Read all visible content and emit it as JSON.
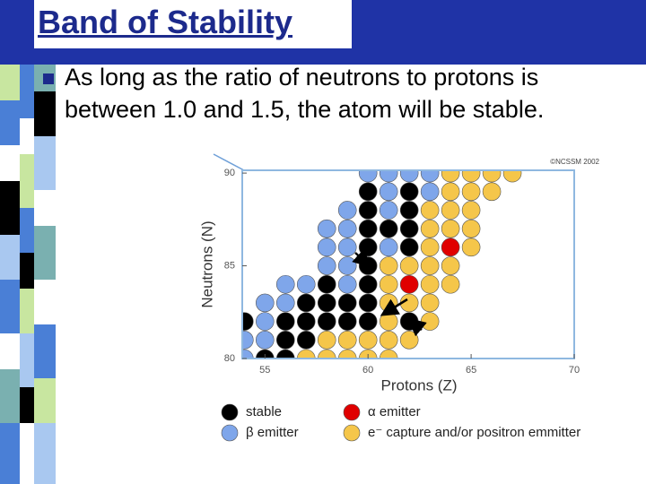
{
  "title": "Band of Stability",
  "bullet": "As long as the ratio of neutrons to protons is between 1.0 and 1.5, the atom will be stable.",
  "chart_data": {
    "type": "scatter",
    "credit": "©NCSSM 2002",
    "x_label": "Protons (Z)",
    "y_label": "Neutrons (N)",
    "xlim": [
      53.9,
      70
    ],
    "ylim": [
      80,
      90.15
    ],
    "xticks": [
      55,
      60,
      65,
      70
    ],
    "yticks": [
      80,
      85,
      90
    ],
    "series": [
      {
        "name": "stable",
        "color": "#000000",
        "x": [
          60,
          62,
          60,
          62,
          60,
          61,
          62,
          60,
          62,
          60,
          58,
          60,
          57,
          58,
          59,
          60,
          54,
          56,
          57,
          58,
          59,
          60,
          62,
          56,
          57,
          55,
          56
        ],
        "y": [
          89,
          89,
          88,
          88,
          87,
          87,
          87,
          86,
          86,
          85,
          84,
          84,
          83,
          83,
          83,
          83,
          82,
          82,
          82,
          82,
          82,
          82,
          82,
          81,
          81,
          80,
          80
        ]
      },
      {
        "name": "β emitter",
        "color": "#7fa6ea",
        "x": [
          60,
          61,
          62,
          63,
          61,
          63,
          59,
          61,
          58,
          59,
          58,
          59,
          61,
          58,
          59,
          56,
          57,
          59,
          55,
          56,
          55,
          54,
          55,
          54
        ],
        "y": [
          90,
          90,
          90,
          90,
          89,
          89,
          88,
          88,
          87,
          87,
          86,
          86,
          86,
          85,
          85,
          84,
          84,
          84,
          83,
          83,
          82,
          81,
          81,
          80
        ]
      },
      {
        "name": "α emitter",
        "color": "#e00000",
        "x": [
          64,
          62
        ],
        "y": [
          86,
          84
        ]
      },
      {
        "name": "e⁻ capture and/or positron emmitter",
        "color": "#f5c64a",
        "x": [
          64,
          65,
          66,
          67,
          64,
          65,
          66,
          63,
          64,
          65,
          63,
          64,
          65,
          63,
          65,
          61,
          62,
          63,
          64,
          61,
          63,
          64,
          61,
          62,
          63,
          61,
          63,
          58,
          59,
          60,
          61,
          62,
          57,
          58,
          59,
          60,
          61
        ],
        "y": [
          90,
          90,
          90,
          90,
          89,
          89,
          89,
          88,
          88,
          88,
          87,
          87,
          87,
          86,
          86,
          85,
          85,
          85,
          85,
          84,
          84,
          84,
          83,
          83,
          83,
          82,
          82,
          81,
          81,
          81,
          81,
          81,
          80,
          80,
          80,
          80,
          80
        ]
      }
    ]
  }
}
